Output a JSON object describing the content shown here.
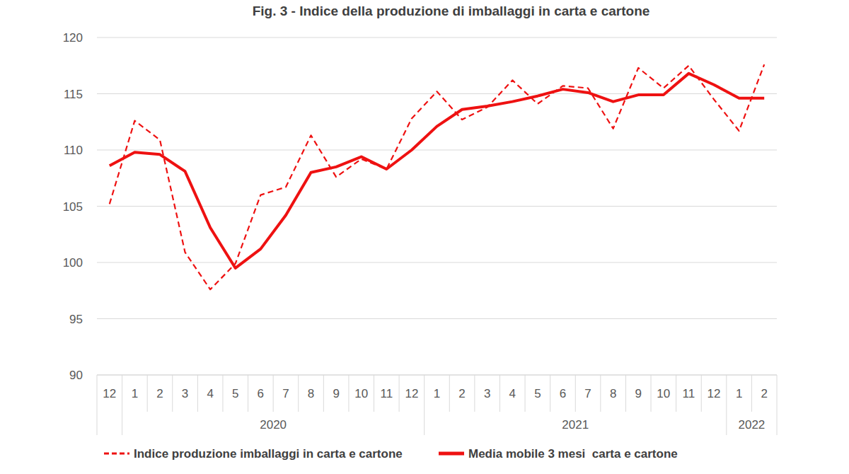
{
  "chart_data": {
    "type": "line",
    "title": "Fig. 3 - Indice della produzione di imballaggi in carta e cartone",
    "categories": [
      "12",
      "1",
      "2",
      "3",
      "4",
      "5",
      "6",
      "7",
      "8",
      "9",
      "10",
      "11",
      "12",
      "1",
      "2",
      "3",
      "4",
      "5",
      "6",
      "7",
      "8",
      "9",
      "10",
      "11",
      "12",
      "1",
      "2"
    ],
    "category_groups": [
      {
        "label": "2020",
        "start": 1,
        "count": 12
      },
      {
        "label": "2021",
        "start": 13,
        "count": 12
      },
      {
        "label": "2022",
        "start": 25,
        "count": 2
      }
    ],
    "series": [
      {
        "name": "Indice produzione imballaggi in carta e cartone",
        "color": "#ee1111",
        "line_style": "dashed",
        "values": [
          105.2,
          112.6,
          110.9,
          100.9,
          97.6,
          99.9,
          106.0,
          106.7,
          111.3,
          107.6,
          109.2,
          108.3,
          112.8,
          115.2,
          112.7,
          113.8,
          116.2,
          114.1,
          115.7,
          115.5,
          111.9,
          117.3,
          115.5,
          117.5,
          114.5,
          111.7,
          117.6
        ]
      },
      {
        "name": "Media mobile 3 mesi  carta e cartone",
        "color": "#ee1111",
        "line_style": "solid",
        "values": [
          108.6,
          109.8,
          109.6,
          108.1,
          103.1,
          99.5,
          101.2,
          104.2,
          108.0,
          108.5,
          109.4,
          108.3,
          110.0,
          112.1,
          113.6,
          113.9,
          114.3,
          114.8,
          115.4,
          115.1,
          114.3,
          114.9,
          114.9,
          116.8,
          115.8,
          114.6,
          114.6
        ]
      }
    ],
    "ylim": [
      90,
      120
    ],
    "yticks": [
      90,
      95,
      100,
      105,
      110,
      115,
      120
    ],
    "grid": true,
    "legend": "bottom"
  }
}
